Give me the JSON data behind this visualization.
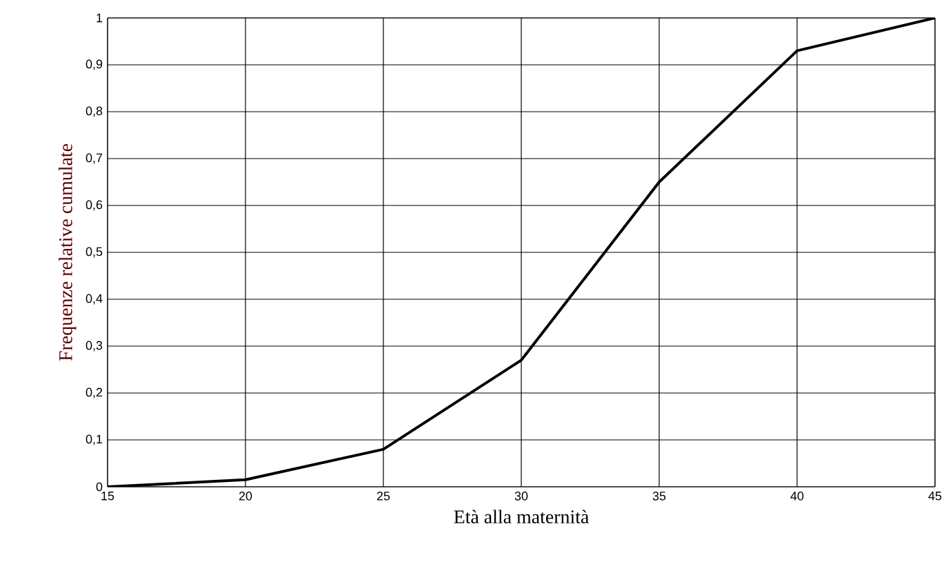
{
  "chart_data": {
    "type": "line",
    "xlabel": "Età alla maternità",
    "ylabel": "Frequenze relative cumulate",
    "x": [
      15,
      20,
      25,
      30,
      35,
      40,
      45
    ],
    "series": [
      {
        "color": "#000000",
        "values": [
          0,
          0.015,
          0.08,
          0.27,
          0.65,
          0.93,
          1
        ]
      }
    ],
    "xlim": [
      15,
      45
    ],
    "xticks": [
      15,
      20,
      25,
      30,
      35,
      40,
      45
    ],
    "ylim": [
      0,
      1
    ],
    "yticks": [
      0,
      {
        "value": 0.1,
        "label": "0,1"
      },
      {
        "value": 0.2,
        "label": "0,2"
      },
      {
        "value": 0.3,
        "label": "0,3"
      },
      {
        "value": 0.4,
        "label": "0,4"
      },
      {
        "value": 0.5,
        "label": "0,5"
      },
      {
        "value": 0.6,
        "label": "0,6"
      },
      {
        "value": 0.7,
        "label": "0,7"
      },
      {
        "value": 0.8,
        "label": "0,8"
      },
      {
        "value": 0.9,
        "label": "0,9"
      },
      1
    ],
    "grid": true,
    "marker": "none",
    "line_style": "solid"
  }
}
